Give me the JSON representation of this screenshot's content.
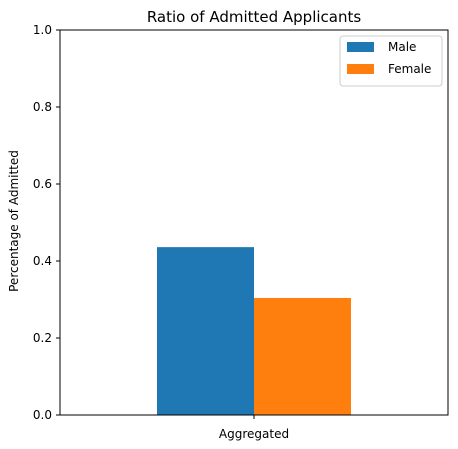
{
  "chart_data": {
    "type": "bar",
    "title": "Ratio of Admitted Applicants",
    "xlabel": "",
    "ylabel": "Percentage of Admitted",
    "categories": [
      "Aggregated"
    ],
    "series": [
      {
        "name": "Male",
        "values": [
          0.436
        ],
        "color": "#1f77b4"
      },
      {
        "name": "Female",
        "values": [
          0.304
        ],
        "color": "#ff7f0e"
      }
    ],
    "ylim": [
      0,
      1.0
    ],
    "yticks": [
      "0.0",
      "0.2",
      "0.4",
      "0.6",
      "0.8",
      "1.0"
    ],
    "grid": false,
    "legend": "top-right"
  }
}
